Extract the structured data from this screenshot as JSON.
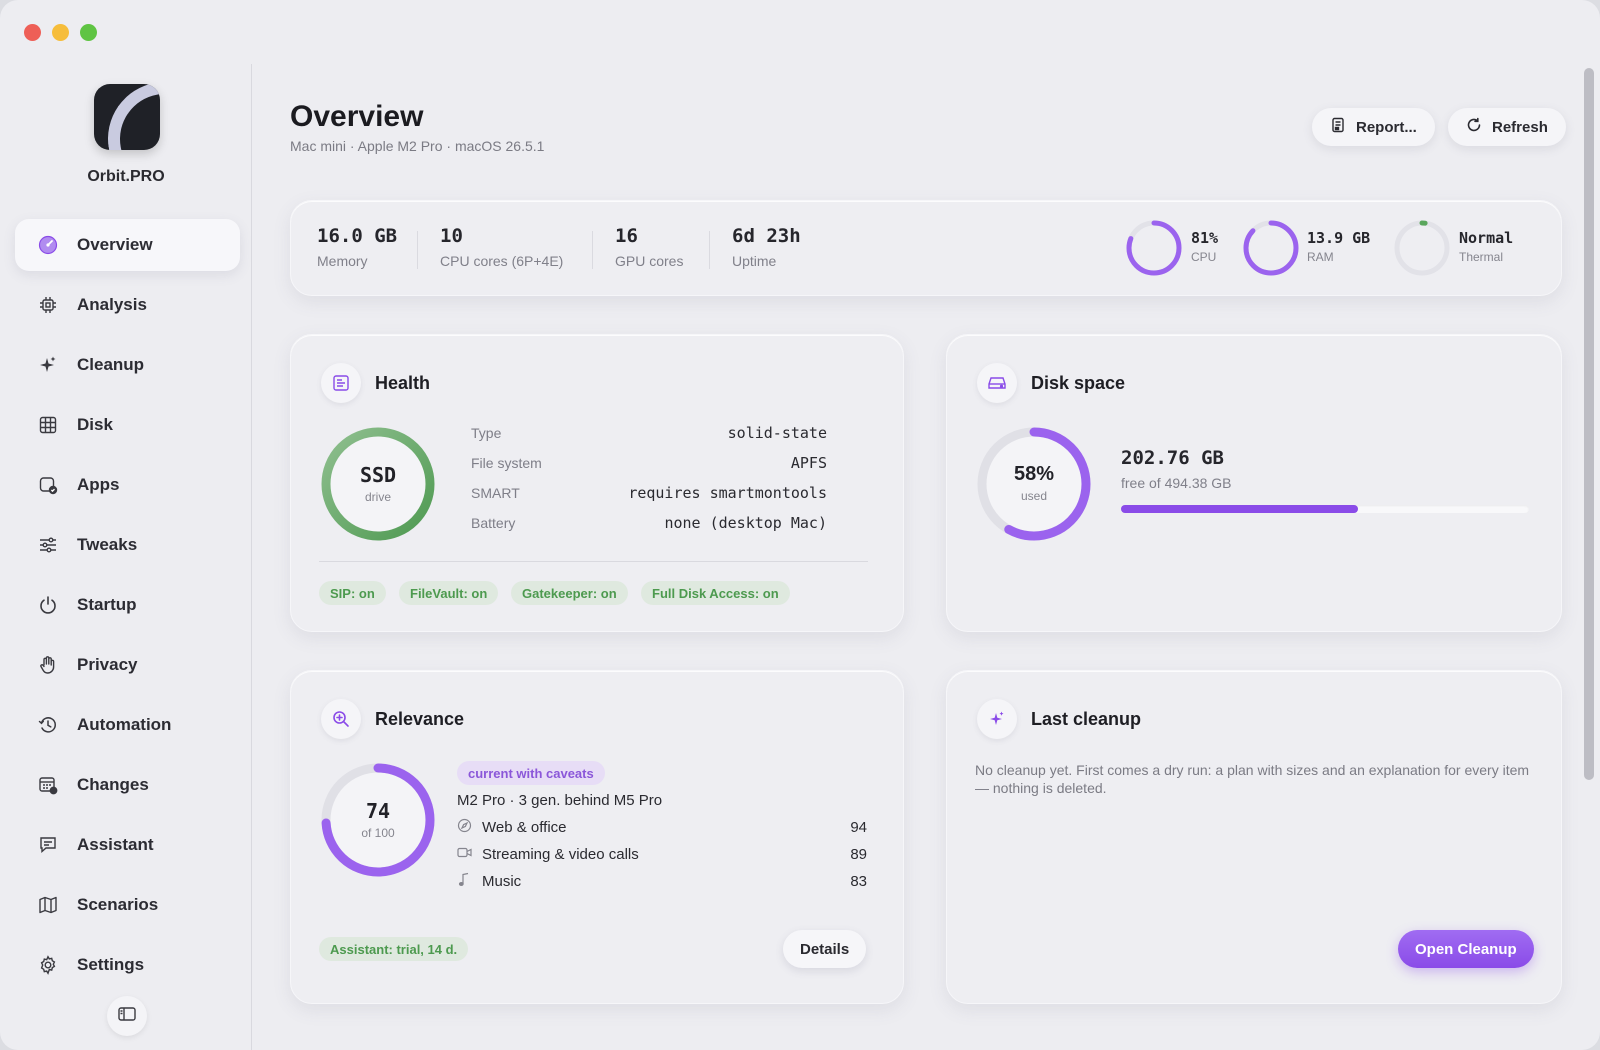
{
  "app": {
    "name": "Orbit.PRO"
  },
  "sidebar": {
    "items": [
      {
        "label": "Overview",
        "icon": "gauge-icon",
        "active": true
      },
      {
        "label": "Analysis",
        "icon": "chip-icon"
      },
      {
        "label": "Cleanup",
        "icon": "sparkle-icon"
      },
      {
        "label": "Disk",
        "icon": "grid-icon"
      },
      {
        "label": "Apps",
        "icon": "apps-check-icon"
      },
      {
        "label": "Tweaks",
        "icon": "sliders-icon"
      },
      {
        "label": "Startup",
        "icon": "power-icon"
      },
      {
        "label": "Privacy",
        "icon": "hand-icon"
      },
      {
        "label": "Automation",
        "icon": "history-icon"
      },
      {
        "label": "Changes",
        "icon": "calendar-badge-icon"
      },
      {
        "label": "Assistant",
        "icon": "chat-icon"
      },
      {
        "label": "Scenarios",
        "icon": "map-icon"
      },
      {
        "label": "Settings",
        "icon": "gear-icon"
      }
    ]
  },
  "header": {
    "title": "Overview",
    "subtitle": "Mac mini · Apple M2 Pro · macOS 26.5.1",
    "report_label": "Report...",
    "refresh_label": "Refresh"
  },
  "stats": {
    "memory": {
      "value": "16.0 GB",
      "label": "Memory"
    },
    "cpu_cores": {
      "value": "10",
      "label": "CPU cores (6P+4E)"
    },
    "gpu_cores": {
      "value": "16",
      "label": "GPU cores"
    },
    "uptime": {
      "value": "6d 23h",
      "label": "Uptime"
    },
    "cpu": {
      "value": "81%",
      "label": "CPU",
      "fraction": 0.81
    },
    "ram": {
      "value": "13.9 GB",
      "label": "RAM",
      "fraction": 0.87
    },
    "thermal": {
      "value": "Normal",
      "label": "Thermal",
      "fraction": 0.02
    }
  },
  "health": {
    "title": "Health",
    "ring_main": "SSD",
    "ring_sub": "drive",
    "rows": [
      {
        "key": "Type",
        "value": "solid-state"
      },
      {
        "key": "File system",
        "value": "APFS"
      },
      {
        "key": "SMART",
        "value": "requires smartmontools"
      },
      {
        "key": "Battery",
        "value": "none (desktop Mac)"
      }
    ],
    "badges": [
      "SIP: on",
      "FileVault: on",
      "Gatekeeper: on",
      "Full Disk Access: on"
    ]
  },
  "disk": {
    "title": "Disk space",
    "percent_label": "58%",
    "percent_sub": "used",
    "used_fraction": 0.58,
    "free": "202.76 GB",
    "free_of": "free of 494.38 GB"
  },
  "relevance": {
    "title": "Relevance",
    "score": "74",
    "score_sub": "of 100",
    "score_fraction": 0.74,
    "status": "current with caveats",
    "summary": "M2 Pro · 3 gen. behind M5 Pro",
    "rows": [
      {
        "label": "Web & office",
        "score": "94",
        "icon": "compass-icon"
      },
      {
        "label": "Streaming & video calls",
        "score": "89",
        "icon": "video-icon"
      },
      {
        "label": "Music",
        "score": "83",
        "icon": "music-note-icon"
      }
    ],
    "trial": "Assistant: trial, 14 d.",
    "details_label": "Details"
  },
  "last_cleanup": {
    "title": "Last cleanup",
    "text": "No cleanup yet. First comes a dry run: a plan with sizes and an explanation for every item — nothing is deleted.",
    "button": "Open Cleanup"
  },
  "colors": {
    "accent": "#8a4be8",
    "green": "#5a9e5c",
    "window_bg": "#ededf1"
  }
}
